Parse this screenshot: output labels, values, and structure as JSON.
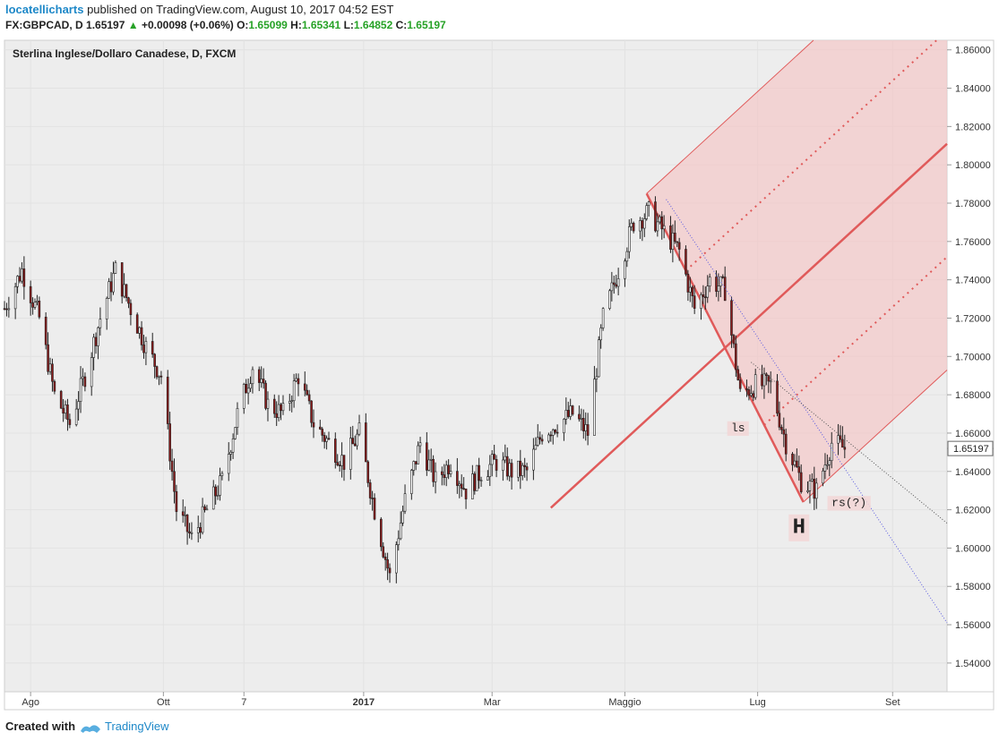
{
  "header": {
    "author": "locatellicharts",
    "published": "published on TradingView.com, August 10, 2017 04:52 EST",
    "symbol": "FX:GBPCAD, D",
    "last": "1.65197",
    "change": "+0.00098 (+0.06%)",
    "o_label": "O:",
    "o_value": "1.65099",
    "h_label": "H:",
    "h_value": "1.65341",
    "l_label": "L:",
    "l_value": "1.64852",
    "c_label": "C:",
    "c_value": "1.65197"
  },
  "chart_title": "Sterlina Inglese/Dollaro Canadese, D, FXCM",
  "footer": {
    "created_with": "Created with",
    "brand": "TradingView"
  },
  "colors": {
    "up_candle": "#ffffff",
    "down_candle": "#8b1a1a",
    "pitchfork": "#e05a5a",
    "pitchfork_fill": "#f4c8c8",
    "background": "#ededed",
    "price_tag": "#ffffff"
  },
  "chart_data": {
    "type": "candlestick",
    "y_axis": {
      "min": 1.525,
      "max": 1.865,
      "ticks": [
        "1.86000",
        "1.84000",
        "1.82000",
        "1.80000",
        "1.78000",
        "1.76000",
        "1.74000",
        "1.72000",
        "1.70000",
        "1.68000",
        "1.66000",
        "1.64000",
        "1.62000",
        "1.60000",
        "1.58000",
        "1.56000",
        "1.54000"
      ],
      "current_price": "1.65197"
    },
    "x_axis": {
      "labels": [
        {
          "text": "Ago",
          "date": "2016-08"
        },
        {
          "text": "Ott",
          "date": "2016-10"
        },
        {
          "text": "7",
          "date": "2016-11-07"
        },
        {
          "text": "2017",
          "date": "2017-01"
        },
        {
          "text": "Mar",
          "date": "2017-03"
        },
        {
          "text": "Maggio",
          "date": "2017-05"
        },
        {
          "text": "Lug",
          "date": "2017-07"
        },
        {
          "text": "Set",
          "date": "2017-09"
        }
      ]
    },
    "price_path": [
      {
        "date": "2016-07-20",
        "close": 1.725
      },
      {
        "date": "2016-07-28",
        "close": 1.745
      },
      {
        "date": "2016-08-05",
        "close": 1.72
      },
      {
        "date": "2016-08-12",
        "close": 1.68
      },
      {
        "date": "2016-08-19",
        "close": 1.665
      },
      {
        "date": "2016-08-26",
        "close": 1.69
      },
      {
        "date": "2016-09-02",
        "close": 1.72
      },
      {
        "date": "2016-09-09",
        "close": 1.745
      },
      {
        "date": "2016-09-16",
        "close": 1.725
      },
      {
        "date": "2016-09-23",
        "close": 1.705
      },
      {
        "date": "2016-09-30",
        "close": 1.69
      },
      {
        "date": "2016-10-07",
        "close": 1.62
      },
      {
        "date": "2016-10-14",
        "close": 1.605
      },
      {
        "date": "2016-10-21",
        "close": 1.62
      },
      {
        "date": "2016-10-28",
        "close": 1.635
      },
      {
        "date": "2016-11-04",
        "close": 1.67
      },
      {
        "date": "2016-11-11",
        "close": 1.695
      },
      {
        "date": "2016-11-18",
        "close": 1.675
      },
      {
        "date": "2016-11-25",
        "close": 1.67
      },
      {
        "date": "2016-12-02",
        "close": 1.69
      },
      {
        "date": "2016-12-09",
        "close": 1.665
      },
      {
        "date": "2016-12-16",
        "close": 1.655
      },
      {
        "date": "2016-12-23",
        "close": 1.645
      },
      {
        "date": "2016-12-30",
        "close": 1.66
      },
      {
        "date": "2017-01-06",
        "close": 1.62
      },
      {
        "date": "2017-01-13",
        "close": 1.585
      },
      {
        "date": "2017-01-20",
        "close": 1.625
      },
      {
        "date": "2017-01-27",
        "close": 1.655
      },
      {
        "date": "2017-02-03",
        "close": 1.635
      },
      {
        "date": "2017-02-10",
        "close": 1.645
      },
      {
        "date": "2017-02-17",
        "close": 1.63
      },
      {
        "date": "2017-02-24",
        "close": 1.64
      },
      {
        "date": "2017-03-03",
        "close": 1.645
      },
      {
        "date": "2017-03-10",
        "close": 1.64
      },
      {
        "date": "2017-03-17",
        "close": 1.64
      },
      {
        "date": "2017-03-24",
        "close": 1.66
      },
      {
        "date": "2017-03-31",
        "close": 1.665
      },
      {
        "date": "2017-04-07",
        "close": 1.67
      },
      {
        "date": "2017-04-14",
        "close": 1.66
      },
      {
        "date": "2017-04-21",
        "close": 1.72
      },
      {
        "date": "2017-04-28",
        "close": 1.745
      },
      {
        "date": "2017-05-05",
        "close": 1.77
      },
      {
        "date": "2017-05-12",
        "close": 1.775
      },
      {
        "date": "2017-05-19",
        "close": 1.765
      },
      {
        "date": "2017-05-26",
        "close": 1.755
      },
      {
        "date": "2017-06-02",
        "close": 1.725
      },
      {
        "date": "2017-06-09",
        "close": 1.74
      },
      {
        "date": "2017-06-16",
        "close": 1.735
      },
      {
        "date": "2017-06-23",
        "close": 1.68
      },
      {
        "date": "2017-06-30",
        "close": 1.685
      },
      {
        "date": "2017-07-07",
        "close": 1.685
      },
      {
        "date": "2017-07-14",
        "close": 1.655
      },
      {
        "date": "2017-07-21",
        "close": 1.635
      },
      {
        "date": "2017-07-28",
        "close": 1.63
      },
      {
        "date": "2017-08-04",
        "close": 1.655
      },
      {
        "date": "2017-08-10",
        "close": 1.652
      }
    ],
    "annotations": [
      {
        "text": "ls",
        "date": "2017-06-22",
        "price": 1.661
      },
      {
        "text": "H",
        "date": "2017-07-20",
        "price": 1.608
      },
      {
        "text": "rs(?)",
        "date": "2017-08-12",
        "price": 1.622
      }
    ]
  }
}
